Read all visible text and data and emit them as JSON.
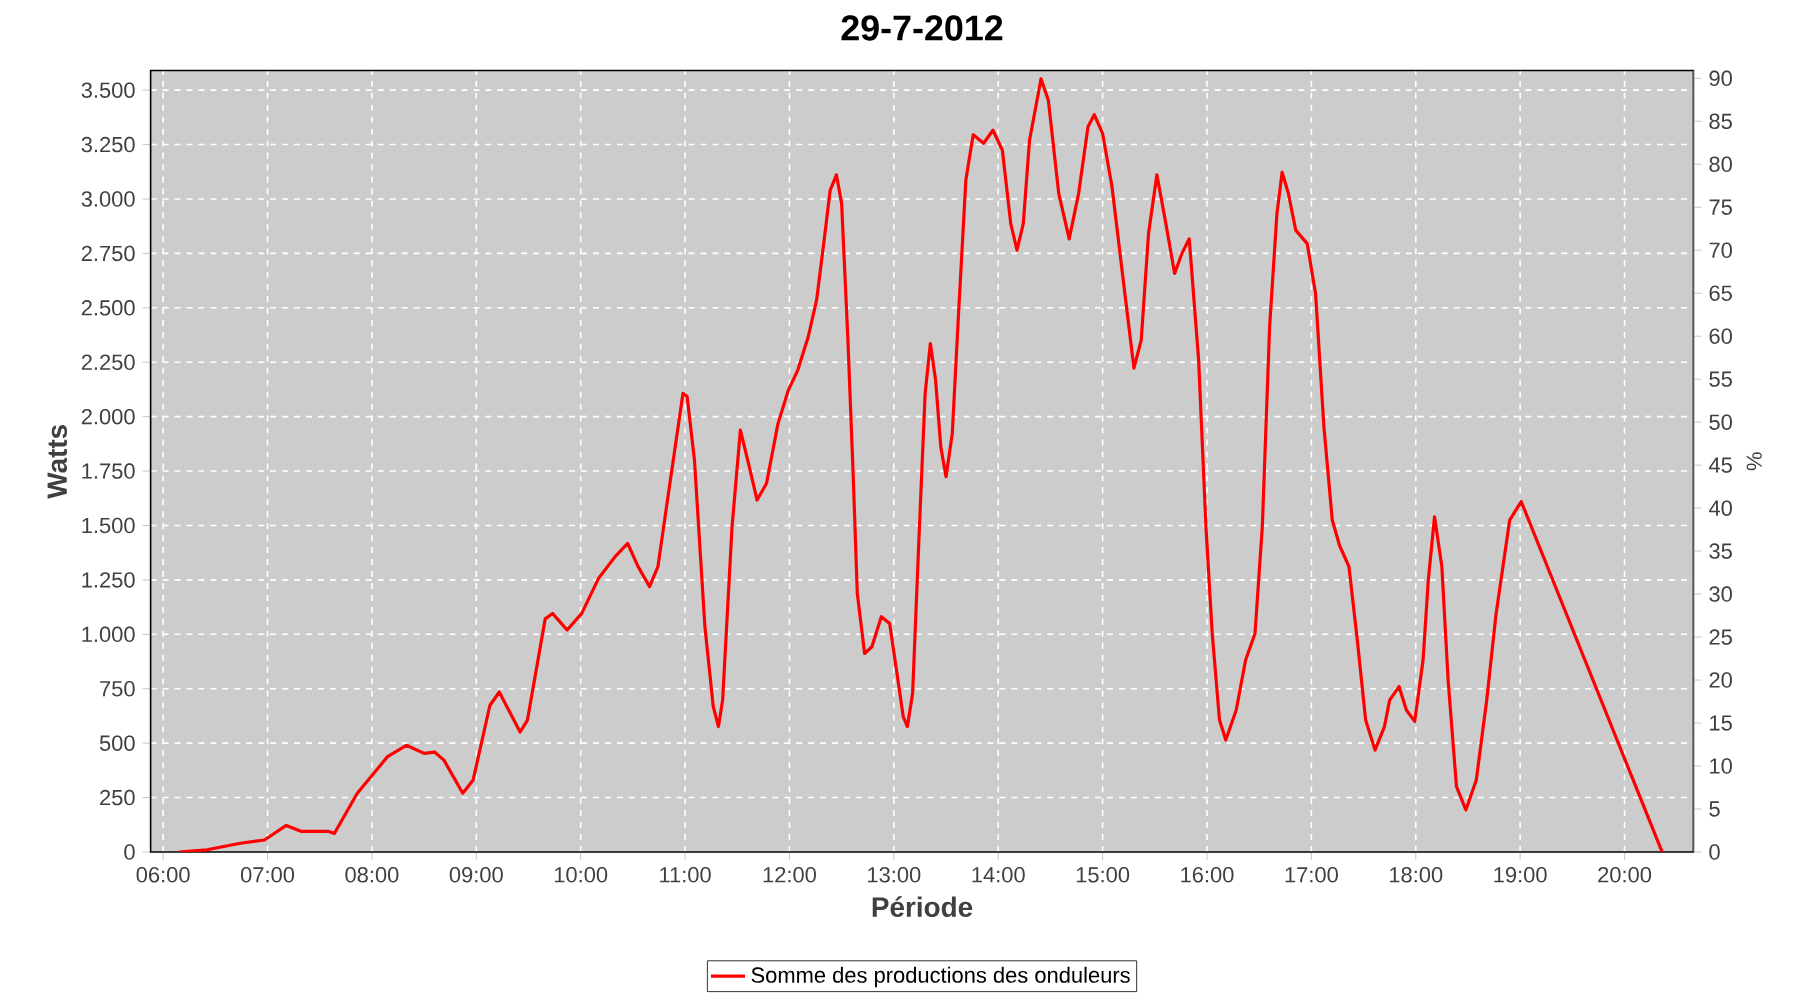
{
  "chart_data": {
    "type": "line",
    "title": "29-7-2012",
    "xlabel": "Période",
    "ylabel": "Watts",
    "y2label": "%",
    "x": [
      6.15,
      6.42,
      6.74,
      6.97,
      7.18,
      7.32,
      7.58,
      7.64,
      7.86,
      8.15,
      8.33,
      8.5,
      8.6,
      8.69,
      8.87,
      8.97,
      9.13,
      9.22,
      9.42,
      9.49,
      9.66,
      9.73,
      9.87,
      10.01,
      10.17,
      10.33,
      10.45,
      10.55,
      10.66,
      10.74,
      10.85,
      10.98,
      11.02,
      11.09,
      11.19,
      11.27,
      11.32,
      11.36,
      11.45,
      11.53,
      11.6,
      11.69,
      11.78,
      11.89,
      11.99,
      12.08,
      12.18,
      12.26,
      12.34,
      12.39,
      12.45,
      12.5,
      12.56,
      12.61,
      12.65,
      12.72,
      12.79,
      12.88,
      12.96,
      13.03,
      13.09,
      13.13,
      13.18,
      13.24,
      13.3,
      13.35,
      13.4,
      13.45,
      13.5,
      13.56,
      13.62,
      13.69,
      13.76,
      13.86,
      13.95,
      14.04,
      14.12,
      14.18,
      14.24,
      14.3,
      14.41,
      14.48,
      14.58,
      14.68,
      14.77,
      14.86,
      14.92,
      15.0,
      15.09,
      15.19,
      15.3,
      15.37,
      15.44,
      15.52,
      15.6,
      15.69,
      15.76,
      15.83,
      15.92,
      15.99,
      16.05,
      16.12,
      16.18,
      16.28,
      16.37,
      16.46,
      16.53,
      16.6,
      16.67,
      16.72,
      16.78,
      16.85,
      16.96,
      17.04,
      17.12,
      17.2,
      17.27,
      17.36,
      17.44,
      17.52,
      17.61,
      17.7,
      17.75,
      17.84,
      17.91,
      17.99,
      18.07,
      18.12,
      18.18,
      18.25,
      18.31,
      18.39,
      18.48,
      18.58,
      18.68,
      18.77,
      18.9,
      19.01,
      20.36
    ],
    "series": [
      {
        "name": "Somme des productions des onduleurs",
        "color": "#ff0000",
        "values": [
          0,
          10,
          40,
          55,
          122,
          95,
          95,
          85,
          270,
          438,
          490,
          453,
          459,
          422,
          270,
          331,
          673,
          735,
          551,
          606,
          1071,
          1096,
          1020,
          1096,
          1256,
          1357,
          1418,
          1311,
          1219,
          1311,
          1678,
          2107,
          2092,
          1800,
          1035,
          668,
          576,
          698,
          1494,
          1938,
          1800,
          1617,
          1693,
          1968,
          2122,
          2214,
          2367,
          2535,
          2841,
          3040,
          3111,
          2979,
          2352,
          1739,
          1188,
          912,
          943,
          1081,
          1050,
          820,
          622,
          576,
          729,
          1433,
          2107,
          2336,
          2168,
          1861,
          1724,
          1923,
          2474,
          3087,
          3295,
          3256,
          3316,
          3224,
          2887,
          2765,
          2887,
          3270,
          3552,
          3454,
          3025,
          2817,
          3025,
          3332,
          3387,
          3301,
          3056,
          2658,
          2223,
          2352,
          2841,
          3111,
          2903,
          2658,
          2750,
          2817,
          2260,
          1494,
          1004,
          606,
          514,
          652,
          882,
          1004,
          1494,
          2413,
          2933,
          3123,
          3025,
          2857,
          2795,
          2566,
          1954,
          1525,
          1408,
          1311,
          974,
          606,
          468,
          576,
          698,
          760,
          652,
          600,
          882,
          1249,
          1540,
          1311,
          790,
          300,
          193,
          331,
          698,
          1096,
          1525,
          1610,
          0
        ]
      }
    ],
    "xlim": [
      5.88,
      20.66
    ],
    "xticks": [
      {
        "value": 6,
        "label": "06:00"
      },
      {
        "value": 7,
        "label": "07:00"
      },
      {
        "value": 8,
        "label": "08:00"
      },
      {
        "value": 9,
        "label": "09:00"
      },
      {
        "value": 10,
        "label": "10:00"
      },
      {
        "value": 11,
        "label": "11:00"
      },
      {
        "value": 12,
        "label": "12:00"
      },
      {
        "value": 13,
        "label": "13:00"
      },
      {
        "value": 14,
        "label": "14:00"
      },
      {
        "value": 15,
        "label": "15:00"
      },
      {
        "value": 16,
        "label": "16:00"
      },
      {
        "value": 17,
        "label": "17:00"
      },
      {
        "value": 18,
        "label": "18:00"
      },
      {
        "value": 19,
        "label": "19:00"
      },
      {
        "value": 20,
        "label": "20:00"
      }
    ],
    "ylim": [
      0,
      3590
    ],
    "yticks": [
      0,
      250,
      500,
      750,
      {
        "value": 1000,
        "label": "1.000"
      },
      {
        "value": 1250,
        "label": "1.250"
      },
      {
        "value": 1500,
        "label": "1.500"
      },
      {
        "value": 1750,
        "label": "1.750"
      },
      {
        "value": 2000,
        "label": "2.000"
      },
      {
        "value": 2250,
        "label": "2.250"
      },
      {
        "value": 2500,
        "label": "2.500"
      },
      {
        "value": 2750,
        "label": "2.750"
      },
      {
        "value": 3000,
        "label": "3.000"
      },
      {
        "value": 3250,
        "label": "3.250"
      },
      {
        "value": 3500,
        "label": "3.500"
      }
    ],
    "y2lim": [
      0,
      90.9
    ],
    "y2ticks": [
      0,
      5,
      10,
      15,
      20,
      25,
      30,
      35,
      40,
      45,
      50,
      55,
      60,
      65,
      70,
      75,
      80,
      85,
      90
    ],
    "grid": true,
    "legend": "bottom",
    "marker": "none",
    "line_style": "solid"
  }
}
